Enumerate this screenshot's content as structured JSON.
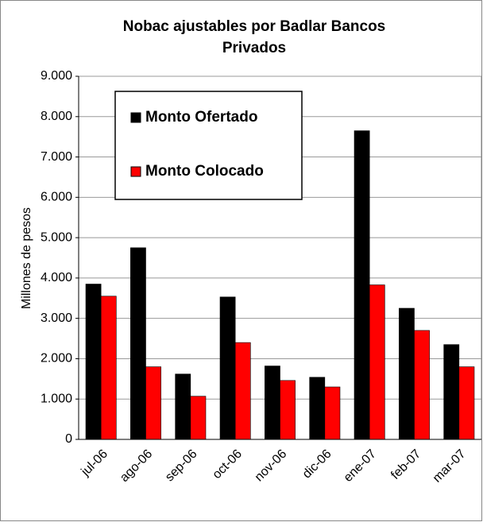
{
  "chart_data": {
    "type": "bar",
    "title": [
      "Nobac ajustables por Badlar Bancos",
      "Privados"
    ],
    "y_label": "Millones de pesos",
    "categories": [
      "jul-06",
      "ago-06",
      "sep-06",
      "oct-06",
      "nov-06",
      "dic-06",
      "ene-07",
      "feb-07",
      "mar-07"
    ],
    "series": [
      {
        "name": "Monto Ofertado",
        "color": "#000000",
        "values": [
          3850,
          4750,
          1620,
          3530,
          1820,
          1540,
          7650,
          3250,
          2350
        ]
      },
      {
        "name": "Monto Colocado",
        "color": "#ff0000",
        "values": [
          3550,
          1800,
          1070,
          2400,
          1460,
          1300,
          3830,
          2700,
          1800
        ]
      }
    ],
    "ylim": [
      0,
      9000
    ],
    "yticks": [
      0,
      {
        "value": 1000,
        "label": "1.000"
      },
      {
        "value": 2000,
        "label": "2.000"
      },
      {
        "value": 3000,
        "label": "3.000"
      },
      {
        "value": 4000,
        "label": "4.000"
      },
      {
        "value": 5000,
        "label": "5.000"
      },
      {
        "value": 6000,
        "label": "6.000"
      },
      {
        "value": 7000,
        "label": "7.000"
      },
      {
        "value": 8000,
        "label": "8.000"
      },
      {
        "value": 9000,
        "label": "9.000"
      }
    ],
    "grid": true,
    "legend": "upper left"
  }
}
